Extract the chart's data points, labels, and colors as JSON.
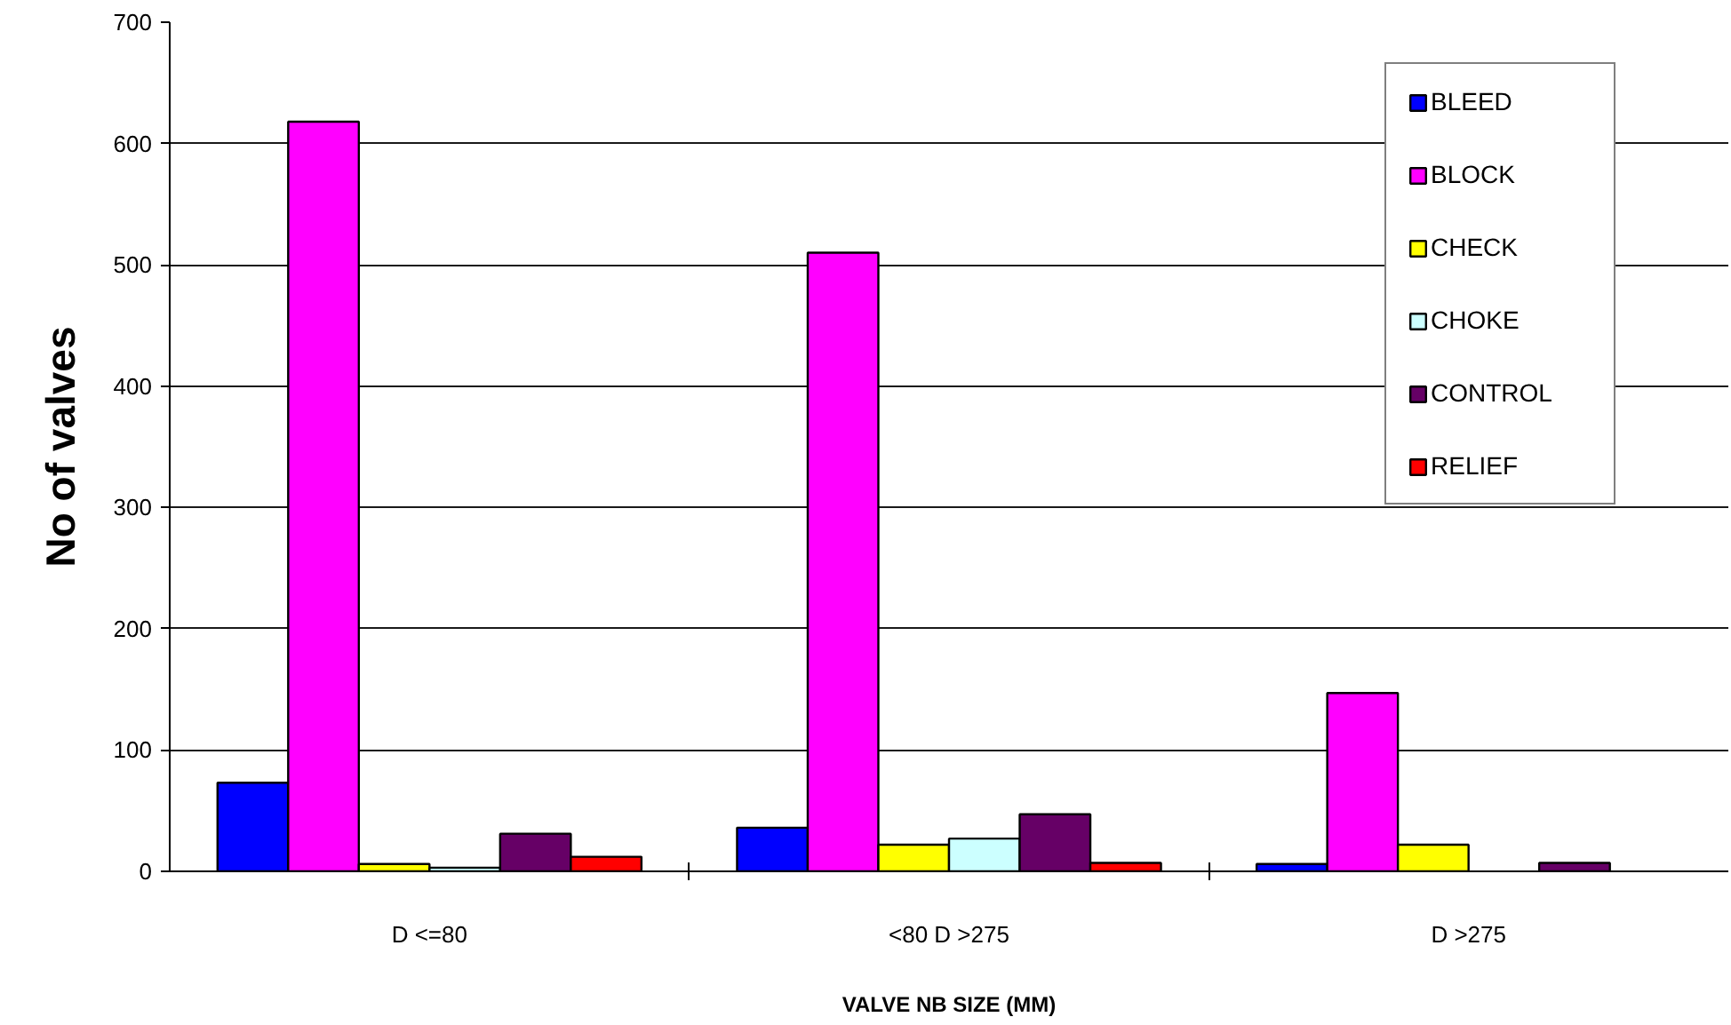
{
  "chart_data": {
    "type": "bar",
    "xlabel": "VALVE NB SIZE (MM)",
    "ylabel": "No of valves",
    "categories": [
      "D <=80",
      "<80 D >275",
      "D >275"
    ],
    "series": [
      {
        "name": "BLEED",
        "color": "#0000ff",
        "values": [
          73,
          36,
          6
        ]
      },
      {
        "name": "BLOCK",
        "color": "#ff00ff",
        "values": [
          618,
          510,
          147
        ]
      },
      {
        "name": "CHECK",
        "color": "#ffff00",
        "values": [
          6,
          22,
          22
        ]
      },
      {
        "name": "CHOKE",
        "color": "#ccffff",
        "values": [
          3,
          27,
          null
        ]
      },
      {
        "name": "CONTROL",
        "color": "#660066",
        "values": [
          31,
          47,
          7
        ]
      },
      {
        "name": "RELIEF",
        "color": "#ff0000",
        "values": [
          12,
          7,
          null
        ]
      }
    ],
    "ylim": [
      0,
      700
    ],
    "yticks": [
      0,
      100,
      200,
      300,
      400,
      500,
      600,
      700
    ],
    "grid": "y",
    "legend": "top right"
  }
}
